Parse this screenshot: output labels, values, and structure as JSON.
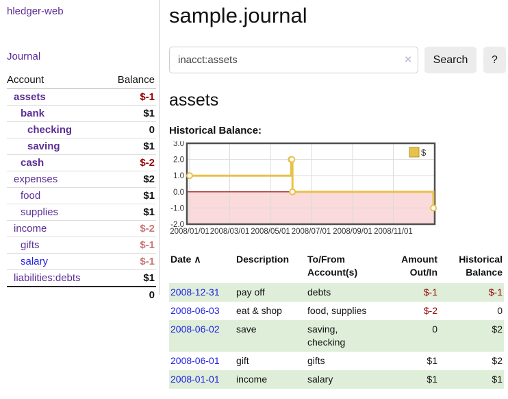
{
  "sidebar": {
    "brand": "hledger-web",
    "journal_link": "Journal",
    "accounts_table": {
      "headers": [
        "Account",
        "Balance"
      ],
      "rows": [
        {
          "name": "assets",
          "depth": 1,
          "bold": true,
          "blue": false,
          "balance": "$-1",
          "amount_class": "neg"
        },
        {
          "name": "bank",
          "depth": 2,
          "bold": true,
          "blue": false,
          "balance": "$1",
          "amount_class": ""
        },
        {
          "name": "checking",
          "depth": 3,
          "bold": true,
          "blue": false,
          "balance": "0",
          "amount_class": ""
        },
        {
          "name": "saving",
          "depth": 3,
          "bold": true,
          "blue": false,
          "balance": "$1",
          "amount_class": ""
        },
        {
          "name": "cash",
          "depth": 2,
          "bold": true,
          "blue": false,
          "balance": "$-2",
          "amount_class": "neg"
        },
        {
          "name": "expenses",
          "depth": 1,
          "bold": false,
          "blue": false,
          "balance": "$2",
          "amount_class": ""
        },
        {
          "name": "food",
          "depth": 2,
          "bold": false,
          "blue": false,
          "balance": "$1",
          "amount_class": ""
        },
        {
          "name": "supplies",
          "depth": 2,
          "bold": false,
          "blue": false,
          "balance": "$1",
          "amount_class": ""
        },
        {
          "name": "income",
          "depth": 1,
          "bold": false,
          "blue": false,
          "balance": "$-2",
          "amount_class": "negmuted"
        },
        {
          "name": "gifts",
          "depth": 2,
          "bold": false,
          "blue": false,
          "balance": "$-1",
          "amount_class": "negmuted"
        },
        {
          "name": "salary",
          "depth": 2,
          "bold": false,
          "blue": true,
          "balance": "$-1",
          "amount_class": "negmuted"
        },
        {
          "name": "liabilities:debts",
          "depth": 1,
          "bold": false,
          "blue": false,
          "balance": "$1",
          "amount_class": ""
        }
      ],
      "total": "0"
    }
  },
  "main": {
    "title": "sample.journal",
    "search": {
      "value": "inacct:assets",
      "clear_icon": "×",
      "button_label": "Search",
      "help_label": "?"
    },
    "account_heading": "assets",
    "section_label": "Historical Balance:"
  },
  "chart_data": {
    "type": "line",
    "subtype": "step-after",
    "title": "Historical Balance",
    "series": [
      {
        "name": "$",
        "points": [
          [
            "2008/01/01",
            1.0
          ],
          [
            "2008/06/01",
            2.0
          ],
          [
            "2008/06/02",
            2.0
          ],
          [
            "2008/06/03",
            0.0
          ],
          [
            "2008/12/31",
            -1.0
          ]
        ]
      }
    ],
    "x_range": [
      "2008/01/01",
      "2008/12/31"
    ],
    "x_ticks": [
      "2008/01/01",
      "2008/03/01",
      "2008/05/01",
      "2008/07/01",
      "2008/09/01",
      "2008/11/01"
    ],
    "y_ticks": [
      "3.0",
      "2.0",
      "1.0",
      "0.0",
      "-1.0",
      "-2.0"
    ],
    "ylim": [
      -2.0,
      3.0
    ],
    "grid": true,
    "legend": {
      "label": "$",
      "position": "top-right"
    },
    "colors": {
      "line": "#e8c14a",
      "marker_fill": "#ffffff",
      "negative_region": "#fadada",
      "zero_line": "#8b0000",
      "gridline": "#dcdcdc",
      "border": "#4f4f4f",
      "legend_swatch": "#e8c14a",
      "legend_swatch_border": "#b89530"
    }
  },
  "transactions": {
    "headers": [
      {
        "label": "Date",
        "sort_icon": "∧",
        "align": "left"
      },
      {
        "label": "Description",
        "align": "left"
      },
      {
        "label": "To/From Account(s)",
        "align": "left"
      },
      {
        "label": "Amount Out/In",
        "align": "right"
      },
      {
        "label": "Historical Balance",
        "align": "right"
      }
    ],
    "rows": [
      {
        "date": "2008-12-31",
        "description": "pay off",
        "accounts": "debts",
        "amount": "$-1",
        "amount_class": "neg",
        "balance": "$-1",
        "balance_class": "neg"
      },
      {
        "date": "2008-06-03",
        "description": "eat & shop",
        "accounts": "food, supplies",
        "amount": "$-2",
        "amount_class": "neg",
        "balance": "0",
        "balance_class": ""
      },
      {
        "date": "2008-06-02",
        "description": "save",
        "accounts": "saving, checking",
        "amount": "0",
        "amount_class": "",
        "balance": "$2",
        "balance_class": ""
      },
      {
        "date": "2008-06-01",
        "description": "gift",
        "accounts": "gifts",
        "amount": "$1",
        "amount_class": "",
        "balance": "$2",
        "balance_class": ""
      },
      {
        "date": "2008-01-01",
        "description": "income",
        "accounts": "salary",
        "amount": "$1",
        "amount_class": "",
        "balance": "$1",
        "balance_class": ""
      }
    ]
  },
  "colors": {
    "link_purple": "#5b2d96",
    "link_blue": "#1e1ee6",
    "negative_strong": "#990000",
    "negative_muted": "#c87878",
    "row_stripe_green": "#deeed8",
    "button_bg": "#ececec"
  }
}
